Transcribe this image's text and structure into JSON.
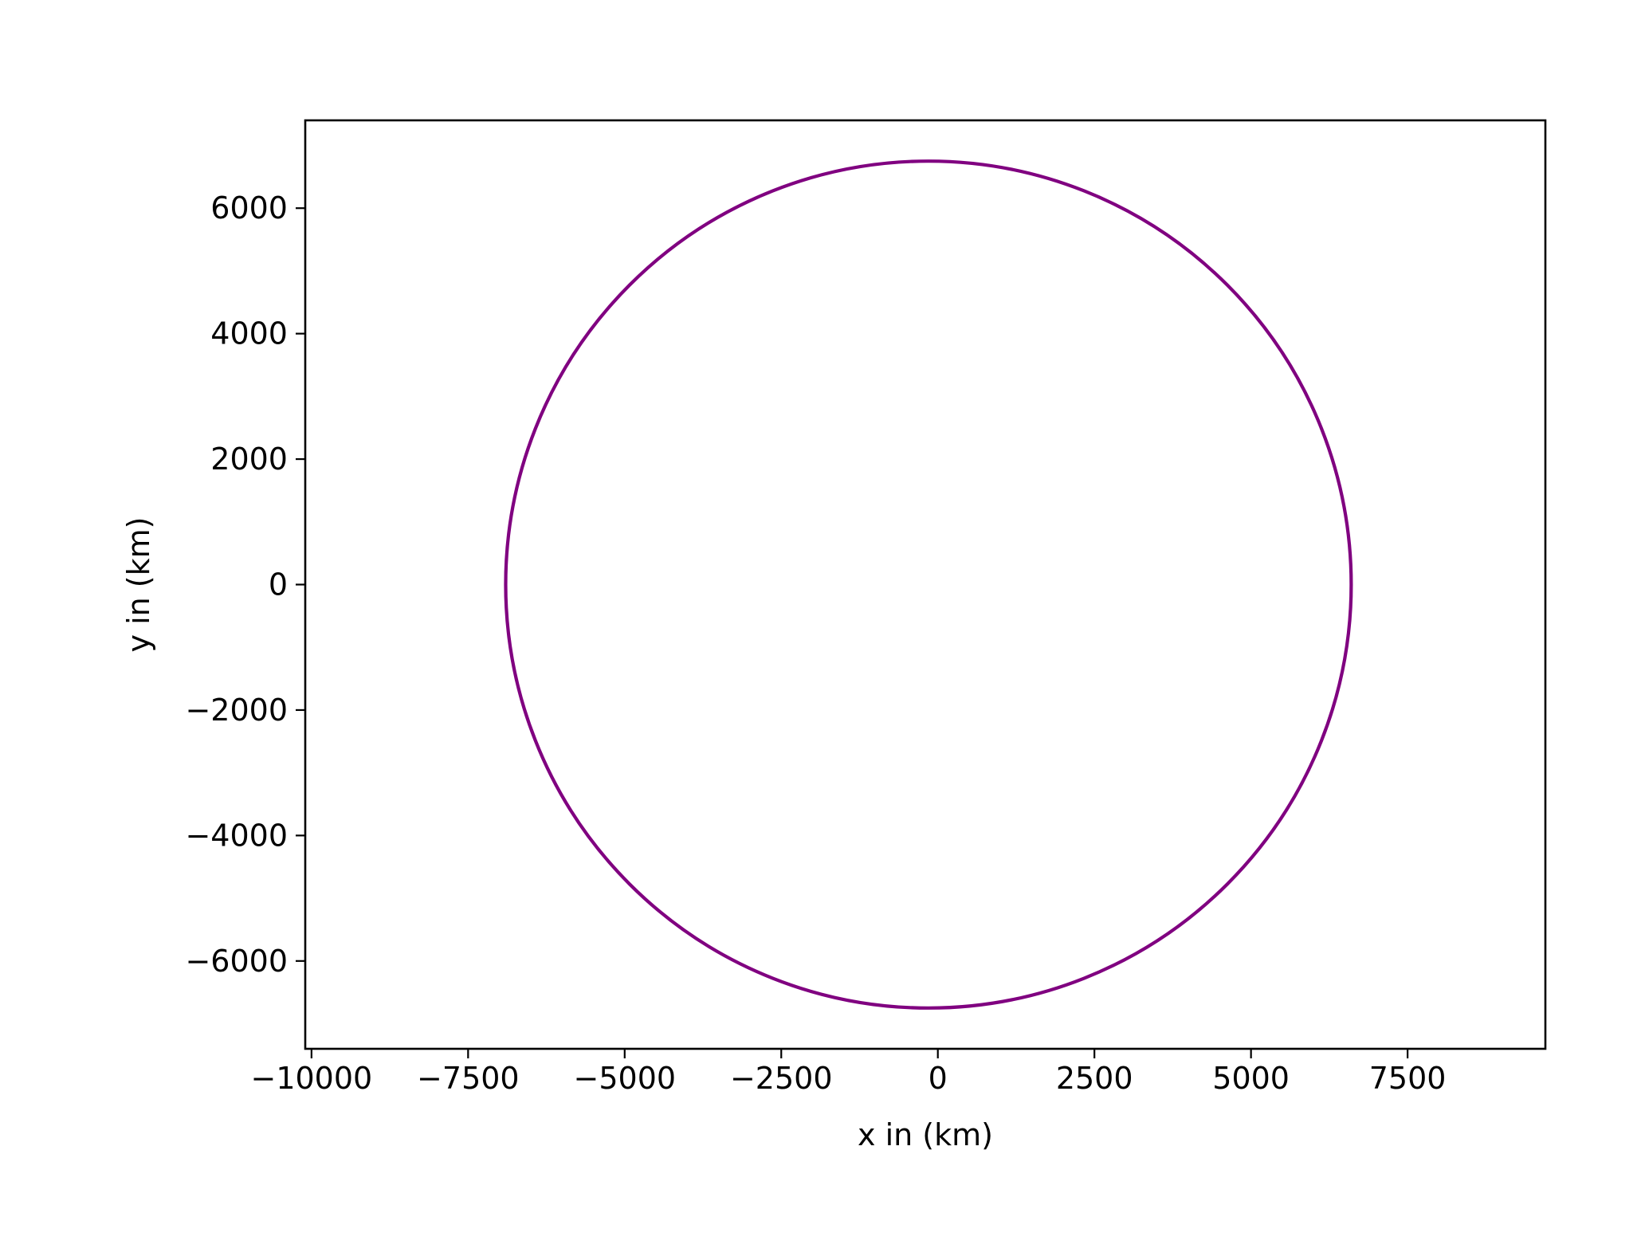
{
  "chart_data": {
    "type": "line",
    "title": "",
    "xlabel": "x in (km)",
    "ylabel": "y in (km)",
    "xlim": [
      -10100,
      9700
    ],
    "ylim": [
      -7400,
      7400
    ],
    "x_ticks": [
      -10000,
      -7500,
      -5000,
      -2500,
      0,
      2500,
      5000,
      7500
    ],
    "x_tick_labels": [
      "−10000",
      "−7500",
      "−5000",
      "−2500",
      "0",
      "2500",
      "5000",
      "7500"
    ],
    "y_ticks": [
      -6000,
      -4000,
      -2000,
      0,
      2000,
      4000,
      6000
    ],
    "y_tick_labels": [
      "−6000",
      "−4000",
      "−2000",
      "0",
      "2000",
      "4000",
      "6000"
    ],
    "grid": false,
    "legend": "none",
    "series": [
      {
        "kind": "circle",
        "center": [
          -150,
          0
        ],
        "radius": 6750,
        "color": "#800080"
      }
    ]
  }
}
